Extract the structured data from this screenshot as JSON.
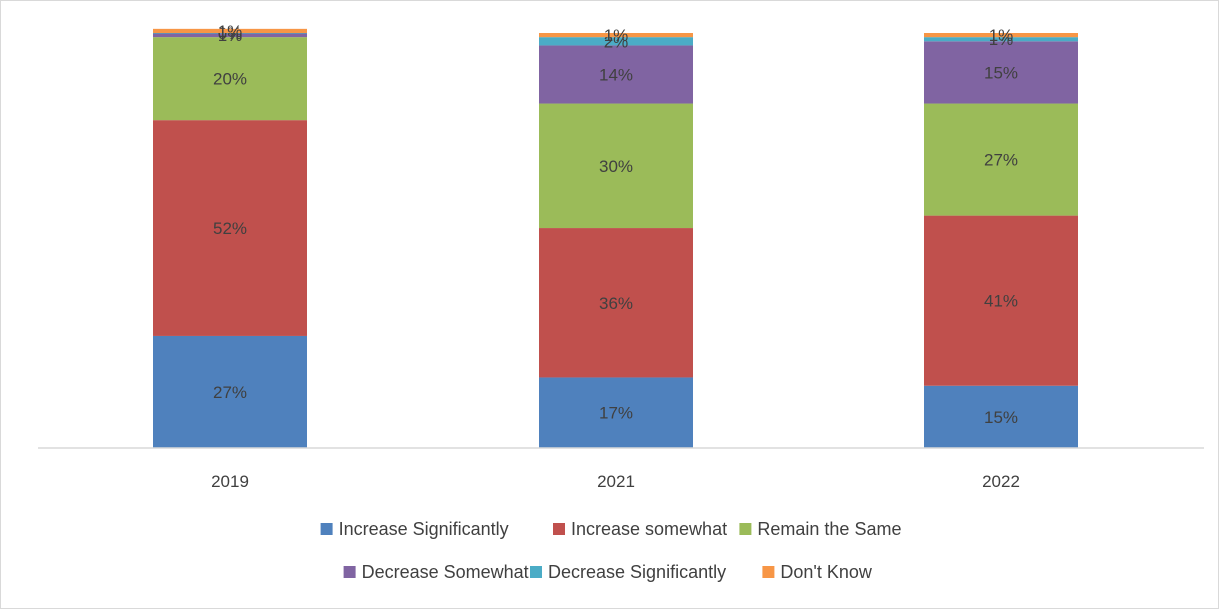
{
  "chart_data": {
    "type": "bar",
    "stacked": true,
    "categories": [
      "2019",
      "2021",
      "2022"
    ],
    "series": [
      {
        "name": "Increase Significantly",
        "color": "#4f81bd",
        "values": [
          27,
          17,
          15
        ],
        "labels": [
          "27%",
          "17%",
          "15%"
        ]
      },
      {
        "name": "Increase somewhat",
        "color": "#c0504d",
        "values": [
          52,
          36,
          41
        ],
        "labels": [
          "52%",
          "36%",
          "41%"
        ]
      },
      {
        "name": "Remain the Same",
        "color": "#9bbb59",
        "values": [
          20,
          30,
          27
        ],
        "labels": [
          "20%",
          "30%",
          "27%"
        ]
      },
      {
        "name": "Decrease Somewhat",
        "color": "#8064a2",
        "values": [
          1,
          14,
          15
        ],
        "labels": [
          "1%",
          "14%",
          "15%"
        ]
      },
      {
        "name": "Decrease Significantly",
        "color": "#4bacc6",
        "values": [
          0,
          2,
          1
        ],
        "labels": [
          "0%",
          "2%",
          "1%"
        ]
      },
      {
        "name": "Don't Know",
        "color": "#f79646",
        "values": [
          1,
          1,
          1
        ],
        "labels": [
          "1%",
          "1%",
          "1%"
        ]
      }
    ],
    "title": "",
    "xlabel": "",
    "ylabel": "",
    "ylim": [
      0,
      100
    ],
    "grid": false,
    "legend_position": "bottom"
  }
}
